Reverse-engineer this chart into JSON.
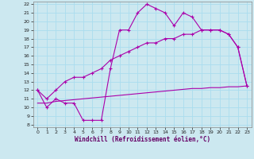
{
  "xlabel": "Windchill (Refroidissement éolien,°C)",
  "bg_color": "#cce8f0",
  "grid_color": "#aaddee",
  "line_color": "#aa00aa",
  "x": [
    0,
    1,
    2,
    3,
    4,
    5,
    6,
    7,
    8,
    9,
    10,
    11,
    12,
    13,
    14,
    15,
    16,
    17,
    18,
    19,
    20,
    21,
    22,
    23
  ],
  "line1": [
    12,
    10,
    11,
    10.5,
    10.5,
    8.5,
    8.5,
    8.5,
    14.5,
    19,
    19,
    21,
    22,
    21.5,
    21,
    19.5,
    21,
    20.5,
    19,
    19,
    19,
    18.5,
    17,
    12.5
  ],
  "line2": [
    12,
    11,
    12,
    13,
    13.5,
    13.5,
    14,
    14.5,
    15.5,
    16,
    16.5,
    17,
    17.5,
    17.5,
    18,
    18,
    18.5,
    18.5,
    19,
    19,
    19,
    18.5,
    17,
    12.5
  ],
  "line3": [
    10.5,
    10.5,
    10.7,
    10.8,
    10.9,
    11.0,
    11.1,
    11.2,
    11.3,
    11.4,
    11.5,
    11.6,
    11.7,
    11.8,
    11.9,
    12.0,
    12.1,
    12.2,
    12.2,
    12.3,
    12.3,
    12.4,
    12.4,
    12.5
  ],
  "ylim": [
    8,
    22
  ],
  "xlim": [
    -0.5,
    23.5
  ],
  "yticks": [
    8,
    9,
    10,
    11,
    12,
    13,
    14,
    15,
    16,
    17,
    18,
    19,
    20,
    21,
    22
  ],
  "xticks": [
    0,
    1,
    2,
    3,
    4,
    5,
    6,
    7,
    8,
    9,
    10,
    11,
    12,
    13,
    14,
    15,
    16,
    17,
    18,
    19,
    20,
    21,
    22,
    23
  ]
}
